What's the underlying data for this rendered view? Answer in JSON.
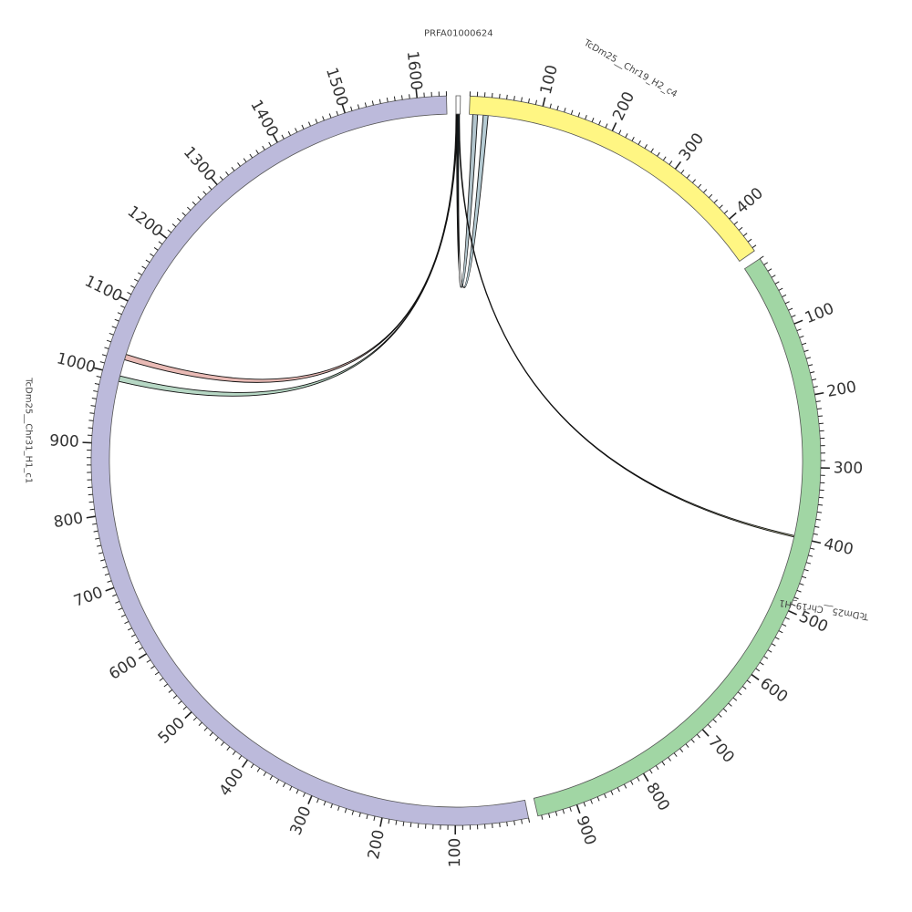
{
  "segments": [
    {
      "name": "PRFA01000624",
      "length": 6,
      "color": "#ffffff",
      "labels": false
    },
    {
      "name": "TcDm25__Chr19_H2_c4",
      "length": 455,
      "color": "#fff683",
      "labels": true
    },
    {
      "name": "TcDm25__Chr19_H1",
      "length": 955,
      "color": "#a1d6a4",
      "labels": true
    },
    {
      "name": "TcDm25__Chr31_H1_c1",
      "length": 1640,
      "color": "#bcbadb",
      "labels": true
    }
  ],
  "tick_step": 10,
  "label_step": 100,
  "links": [
    {
      "from": [
        "PRFA01000624",
        1,
        3
      ],
      "to": [
        "TcDm25__Chr19_H2_c4",
        5,
        12
      ],
      "color": "#23566e"
    },
    {
      "from": [
        "PRFA01000624",
        2,
        4
      ],
      "to": [
        "TcDm25__Chr19_H2_c4",
        20,
        27
      ],
      "color": "#2b6a80"
    },
    {
      "from": [
        "PRFA01000624",
        0,
        1
      ],
      "to": [
        "TcDm25__Chr31_H1_c1",
        1022,
        1030
      ],
      "color": "#c0392b"
    },
    {
      "from": [
        "PRFA01000624",
        1,
        2
      ],
      "to": [
        "TcDm25__Chr31_H1_c1",
        990,
        998
      ],
      "color": "#2e8b57"
    },
    {
      "from": [
        "PRFA01000624",
        4,
        5
      ],
      "to": [
        "TcDm25__Chr19_H1",
        398,
        400
      ],
      "color": "#8a8f1e"
    }
  ]
}
